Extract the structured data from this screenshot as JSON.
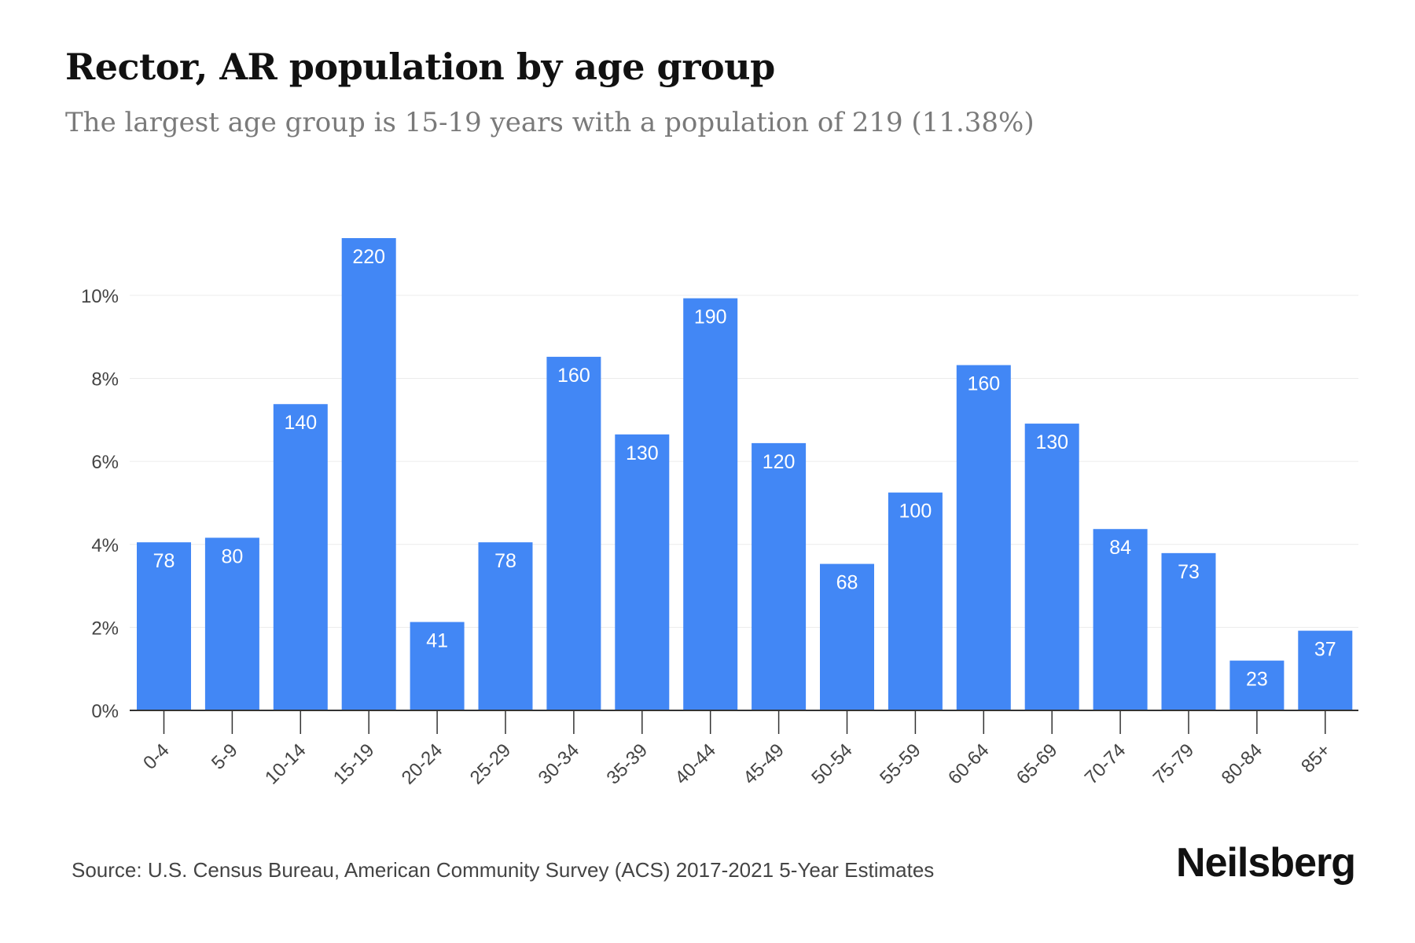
{
  "title": "Rector, AR population by age group",
  "subtitle": "The largest age group is 15-19 years with a population of 219 (11.38%)",
  "source": "Source: U.S. Census Bureau, American Community Survey (ACS) 2017-2021 5-Year Estimates",
  "brand": "Neilsberg",
  "colors": {
    "bar": "#4287f5",
    "grid": "#ececec",
    "axis": "#333333"
  },
  "chart_data": {
    "type": "bar",
    "categories": [
      "0-4",
      "5-9",
      "10-14",
      "15-19",
      "20-24",
      "25-29",
      "30-34",
      "35-39",
      "40-44",
      "45-49",
      "50-54",
      "55-59",
      "60-64",
      "65-69",
      "70-74",
      "75-79",
      "80-84",
      "85+"
    ],
    "values": [
      4.05,
      4.16,
      7.38,
      11.38,
      2.13,
      4.05,
      8.52,
      6.65,
      9.93,
      6.44,
      3.53,
      5.25,
      8.32,
      6.91,
      4.37,
      3.79,
      1.2,
      1.92
    ],
    "data_labels": [
      "78",
      "80",
      "140",
      "220",
      "41",
      "78",
      "160",
      "130",
      "190",
      "120",
      "68",
      "100",
      "160",
      "130",
      "84",
      "73",
      "23",
      "37"
    ],
    "ylim": [
      0,
      11.38
    ],
    "yticks": [
      0,
      2,
      4,
      6,
      8,
      10
    ],
    "ytick_labels": [
      "0%",
      "2%",
      "4%",
      "6%",
      "8%",
      "10%"
    ],
    "grid": true,
    "xlabel": "",
    "ylabel": ""
  }
}
